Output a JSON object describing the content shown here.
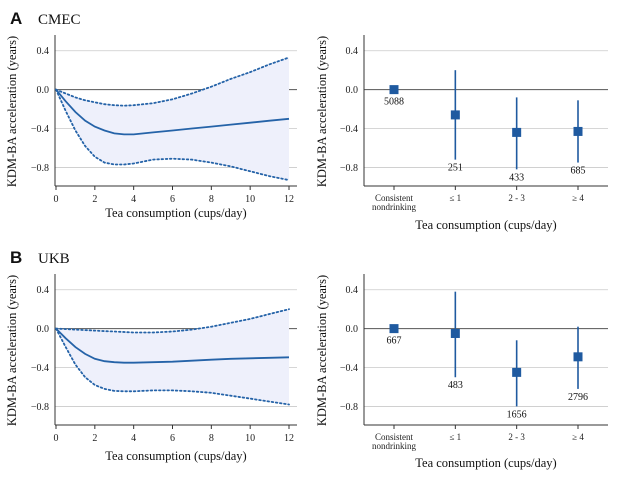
{
  "panels": [
    {
      "letter": "A",
      "cohort": "CMEC"
    },
    {
      "letter": "B",
      "cohort": "UKB"
    }
  ],
  "chart_data": [
    {
      "id": "A-left",
      "type": "line",
      "xlabel": "Tea consumption (cups/day)",
      "ylabel": "KDM-BA acceleration (years)",
      "xlim": [
        0,
        12
      ],
      "ylim": [
        -0.95,
        0.5
      ],
      "xticks": [
        0,
        2,
        4,
        6,
        8,
        10,
        12
      ],
      "yticks": [
        0.4,
        0.0,
        -0.4,
        -0.8
      ],
      "ytick_labels": [
        "0.4",
        "0.0",
        "−0.4",
        "−0.8"
      ],
      "reference_line": 0,
      "colors": {
        "line": "#2563a8",
        "band": "#eef0fb"
      },
      "estimate": {
        "x": [
          0,
          0.5,
          1,
          1.5,
          2,
          2.5,
          3,
          3.5,
          4,
          5,
          6,
          7,
          8,
          9,
          10,
          11,
          12
        ],
        "y": [
          0,
          -0.12,
          -0.23,
          -0.32,
          -0.38,
          -0.42,
          -0.45,
          -0.46,
          -0.46,
          -0.44,
          -0.42,
          -0.4,
          -0.38,
          -0.36,
          -0.34,
          -0.32,
          -0.3
        ]
      },
      "ci_lower": {
        "x": [
          0,
          0.5,
          1,
          1.5,
          2,
          2.5,
          3,
          3.5,
          4,
          5,
          6,
          7,
          8,
          9,
          10,
          11,
          12
        ],
        "y": [
          0,
          -0.22,
          -0.42,
          -0.58,
          -0.69,
          -0.75,
          -0.77,
          -0.77,
          -0.76,
          -0.72,
          -0.71,
          -0.72,
          -0.75,
          -0.79,
          -0.84,
          -0.89,
          -0.93
        ]
      },
      "ci_upper": {
        "x": [
          0,
          0.5,
          1,
          1.5,
          2,
          2.5,
          3,
          3.5,
          4,
          5,
          6,
          7,
          8,
          9,
          10,
          11,
          12
        ],
        "y": [
          0,
          -0.04,
          -0.08,
          -0.11,
          -0.13,
          -0.15,
          -0.16,
          -0.165,
          -0.16,
          -0.14,
          -0.1,
          -0.04,
          0.03,
          0.11,
          0.18,
          0.26,
          0.33
        ]
      }
    },
    {
      "id": "A-right",
      "type": "scatter",
      "xlabel": "Tea consumption (cups/day)",
      "ylabel": "KDM-BA acceleration (years)",
      "ylim": [
        -0.95,
        0.5
      ],
      "yticks": [
        0.4,
        0.0,
        -0.4,
        -0.8
      ],
      "ytick_labels": [
        "0.4",
        "0.0",
        "−0.4",
        "−0.8"
      ],
      "categories": [
        "Consistent\nnondrinking",
        "≤ 1",
        "2 - 3",
        "≥ 4"
      ],
      "reference_line": 0,
      "colors": {
        "marker": "#1f5aa0"
      },
      "points": [
        {
          "category": "Consistent\nnondrinking",
          "value": 0.0,
          "ci": [
            0.0,
            0.0
          ],
          "n": "5088"
        },
        {
          "category": "≤ 1",
          "value": -0.26,
          "ci": [
            -0.72,
            0.2
          ],
          "n": "251"
        },
        {
          "category": "2 - 3",
          "value": -0.44,
          "ci": [
            -0.82,
            -0.08
          ],
          "n": "433"
        },
        {
          "category": "≥ 4",
          "value": -0.43,
          "ci": [
            -0.75,
            -0.11
          ],
          "n": "685"
        }
      ]
    },
    {
      "id": "B-left",
      "type": "line",
      "xlabel": "Tea consumption (cups/day)",
      "ylabel": "KDM-BA acceleration (years)",
      "xlim": [
        0,
        12
      ],
      "ylim": [
        -0.95,
        0.5
      ],
      "xticks": [
        0,
        2,
        4,
        6,
        8,
        10,
        12
      ],
      "yticks": [
        0.4,
        0.0,
        -0.4,
        -0.8
      ],
      "ytick_labels": [
        "0.4",
        "0.0",
        "−0.4",
        "−0.8"
      ],
      "reference_line": 0,
      "colors": {
        "line": "#2563a8",
        "band": "#eef0fb"
      },
      "estimate": {
        "x": [
          0,
          0.5,
          1,
          1.5,
          2,
          2.5,
          3,
          3.5,
          4,
          5,
          6,
          7,
          8,
          9,
          10,
          11,
          12
        ],
        "y": [
          0,
          -0.1,
          -0.19,
          -0.26,
          -0.31,
          -0.335,
          -0.345,
          -0.35,
          -0.35,
          -0.345,
          -0.34,
          -0.33,
          -0.32,
          -0.31,
          -0.305,
          -0.3,
          -0.295
        ]
      },
      "ci_lower": {
        "x": [
          0,
          0.5,
          1,
          1.5,
          2,
          2.5,
          3,
          3.5,
          4,
          5,
          6,
          7,
          8,
          9,
          10,
          11,
          12
        ],
        "y": [
          0,
          -0.19,
          -0.37,
          -0.5,
          -0.58,
          -0.62,
          -0.64,
          -0.645,
          -0.645,
          -0.635,
          -0.635,
          -0.645,
          -0.66,
          -0.69,
          -0.72,
          -0.75,
          -0.78
        ]
      },
      "ci_upper": {
        "x": [
          0,
          0.5,
          1,
          1.5,
          2,
          2.5,
          3,
          3.5,
          4,
          5,
          6,
          7,
          8,
          9,
          10,
          11,
          12
        ],
        "y": [
          0,
          -0.005,
          -0.01,
          -0.015,
          -0.02,
          -0.025,
          -0.03,
          -0.035,
          -0.04,
          -0.04,
          -0.03,
          -0.01,
          0.02,
          0.06,
          0.1,
          0.15,
          0.2
        ]
      }
    },
    {
      "id": "B-right",
      "type": "scatter",
      "xlabel": "Tea consumption (cups/day)",
      "ylabel": "KDM-BA acceleration (years)",
      "ylim": [
        -0.95,
        0.5
      ],
      "yticks": [
        0.4,
        0.0,
        -0.4,
        -0.8
      ],
      "ytick_labels": [
        "0.4",
        "0.0",
        "−0.4",
        "−0.8"
      ],
      "categories": [
        "Consistent\nnondrinking",
        "≤ 1",
        "2 - 3",
        "≥ 4"
      ],
      "reference_line": 0,
      "colors": {
        "marker": "#1f5aa0"
      },
      "points": [
        {
          "category": "Consistent\nnondrinking",
          "value": 0.0,
          "ci": [
            0.0,
            0.0
          ],
          "n": "667"
        },
        {
          "category": "≤ 1",
          "value": -0.05,
          "ci": [
            -0.5,
            0.38
          ],
          "n": "483"
        },
        {
          "category": "2 - 3",
          "value": -0.45,
          "ci": [
            -0.8,
            -0.12
          ],
          "n": "1656"
        },
        {
          "category": "≥ 4",
          "value": -0.29,
          "ci": [
            -0.62,
            0.02
          ],
          "n": "2796"
        }
      ]
    }
  ]
}
